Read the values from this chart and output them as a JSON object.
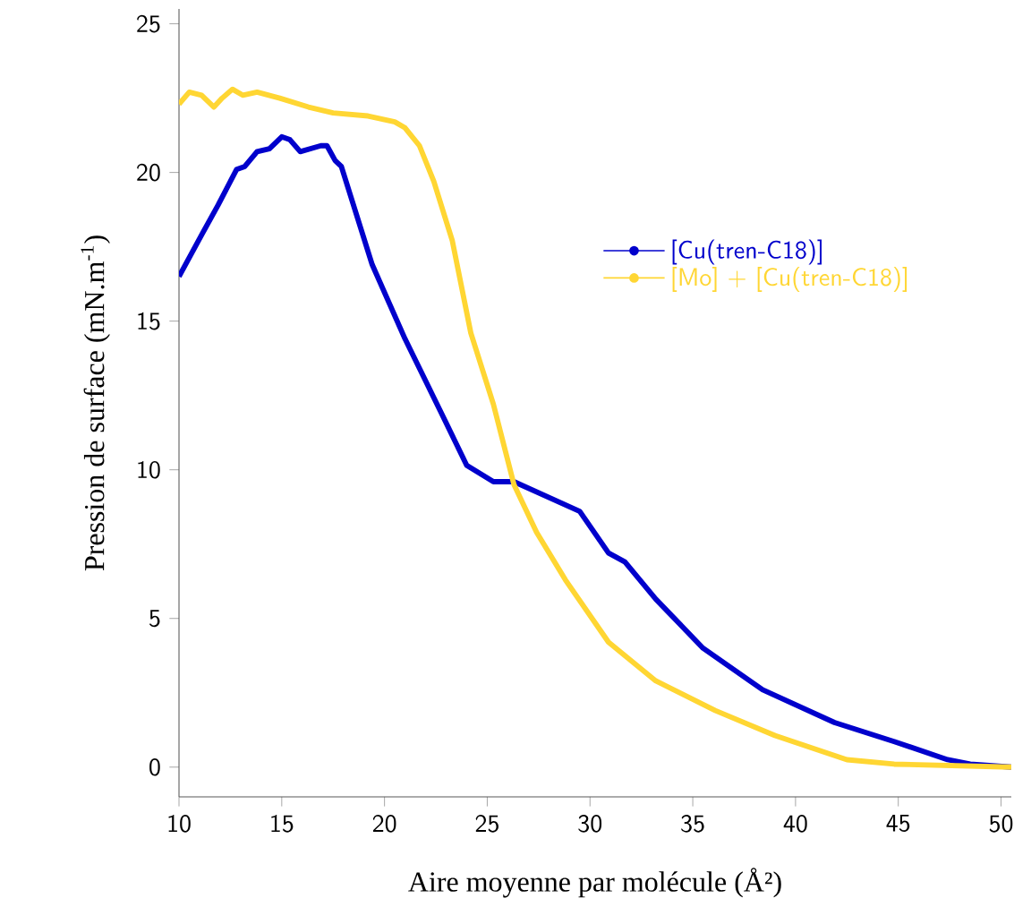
{
  "chart_data": {
    "type": "line",
    "xlabel": "Aire moyenne par molécule (Å²)",
    "ylabel": "Pression de surface (mN.m$^{-1}$)",
    "xlim": [
      10,
      50.5
    ],
    "ylim": [
      -1,
      25.5
    ],
    "xticks": [
      10,
      15,
      20,
      25,
      30,
      35,
      40,
      45,
      50
    ],
    "yticks": [
      0,
      5,
      10,
      15,
      20,
      25
    ],
    "legend": "right",
    "grid": false,
    "series": [
      {
        "name": "[Cu(tren-C18)]",
        "color": "#0000cc",
        "x": [
          10,
          11.1,
          11.9,
          12.8,
          13.2,
          13.8,
          14.4,
          15.0,
          15.4,
          15.9,
          16.9,
          17.2,
          17.6,
          17.9,
          19.4,
          21.0,
          22.7,
          24.0,
          25.3,
          26.3,
          29.5,
          30.9,
          31.7,
          33.2,
          35.5,
          38.4,
          41.9,
          44.8,
          47.4,
          48.5,
          50.5
        ],
        "values": [
          16.5,
          17.9,
          18.9,
          20.1,
          20.2,
          20.7,
          20.8,
          21.2,
          21.1,
          20.7,
          20.9,
          20.9,
          20.4,
          20.2,
          16.9,
          14.4,
          12.0,
          10.15,
          9.6,
          9.6,
          8.6,
          7.2,
          6.9,
          5.65,
          4.0,
          2.6,
          1.5,
          0.86,
          0.25,
          0.1,
          0.0
        ]
      },
      {
        "name": "[Mo] + [Cu(tren-C18)]",
        "color": "#ffd633",
        "x": [
          10,
          10.5,
          11.1,
          11.7,
          12.1,
          12.6,
          13.1,
          13.8,
          14.9,
          16.3,
          17.5,
          19.2,
          20.5,
          21.0,
          21.7,
          22.4,
          23.3,
          24.2,
          25.3,
          26.3,
          27.4,
          28.8,
          30.9,
          33.2,
          36.1,
          39.0,
          42.5,
          44.8,
          50.5
        ],
        "values": [
          22.3,
          22.7,
          22.6,
          22.2,
          22.5,
          22.8,
          22.6,
          22.7,
          22.5,
          22.2,
          22.0,
          21.9,
          21.7,
          21.5,
          20.9,
          19.7,
          17.7,
          14.6,
          12.2,
          9.5,
          7.9,
          6.3,
          4.2,
          2.9,
          1.9,
          1.06,
          0.25,
          0.1,
          0.0
        ]
      }
    ]
  }
}
